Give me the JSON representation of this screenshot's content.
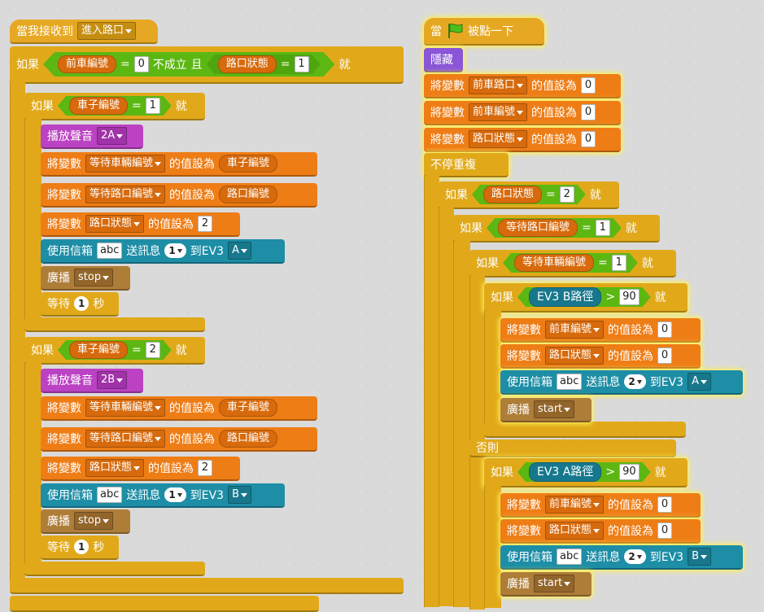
{
  "s1": {
    "hat": {
      "label": "當我接收到",
      "msg": "進入路口"
    },
    "if_outer": {
      "kw": "如果",
      "var1": "前車編號",
      "eq": "=",
      "val1": "0",
      "not": "不成立",
      "and": "且",
      "var2": "路口狀態",
      "val2": "1",
      "then": "就"
    },
    "ifA": {
      "kw": "如果",
      "var": "車子編號",
      "eq": "=",
      "val": "1",
      "then": "就",
      "play": {
        "label": "播放聲音",
        "sound": "2A"
      },
      "set1": {
        "label": "將變數",
        "var": "等待車輛編號",
        "mid": "的值設為",
        "rep": "車子編號"
      },
      "set2": {
        "label": "將變數",
        "var": "等待路口編號",
        "mid": "的值設為",
        "rep": "路口編號"
      },
      "set3": {
        "label": "將變數",
        "var": "路口狀態",
        "mid": "的值設為",
        "val": "2"
      },
      "mail": {
        "label": "使用信箱",
        "abc": "abc",
        "send": "送訊息",
        "num": "1",
        "to": "到EV3",
        "port": "A"
      },
      "bc": {
        "label": "廣播",
        "msg": "stop"
      },
      "wait": {
        "label": "等待",
        "num": "1",
        "unit": "秒"
      }
    },
    "ifB": {
      "kw": "如果",
      "var": "車子編號",
      "eq": "=",
      "val": "2",
      "then": "就",
      "play": {
        "label": "播放聲音",
        "sound": "2B"
      },
      "set1": {
        "label": "將變數",
        "var": "等待車輛編號",
        "mid": "的值設為",
        "rep": "車子編號"
      },
      "set2": {
        "label": "將變數",
        "var": "等待路口編號",
        "mid": "的值設為",
        "rep": "路口編號"
      },
      "set3": {
        "label": "將變數",
        "var": "路口狀態",
        "mid": "的值設為",
        "val": "2"
      },
      "mail": {
        "label": "使用信箱",
        "abc": "abc",
        "send": "送訊息",
        "num": "1",
        "to": "到EV3",
        "port": "B"
      },
      "bc": {
        "label": "廣播",
        "msg": "stop"
      },
      "wait": {
        "label": "等待",
        "num": "1",
        "unit": "秒"
      }
    }
  },
  "s2": {
    "hat": {
      "when": "當",
      "clicked": "被點一下"
    },
    "hide": "隱藏",
    "set1": {
      "label": "將變數",
      "var": "前車路口",
      "mid": "的值設為",
      "val": "0"
    },
    "set2": {
      "label": "將變數",
      "var": "前車編號",
      "mid": "的值設為",
      "val": "0"
    },
    "set3": {
      "label": "將變數",
      "var": "路口狀態",
      "mid": "的值設為",
      "val": "0"
    },
    "forever": "不停重複",
    "if1": {
      "kw": "如果",
      "var": "路口狀態",
      "eq": "=",
      "val": "2",
      "then": "就"
    },
    "if2": {
      "kw": "如果",
      "var": "等待路口編號",
      "eq": "=",
      "val": "1",
      "then": "就"
    },
    "if3": {
      "kw": "如果",
      "var": "等待車輛編號",
      "eq": "=",
      "val": "1",
      "then": "就"
    },
    "if4": {
      "kw": "如果",
      "sensor": "EV3 B路徑",
      "gt": ">",
      "val": "90",
      "then": "就",
      "set1": {
        "label": "將變數",
        "var": "前車編號",
        "mid": "的值設為",
        "val": "0"
      },
      "set2": {
        "label": "將變數",
        "var": "路口狀態",
        "mid": "的值設為",
        "val": "0"
      },
      "mail": {
        "label": "使用信箱",
        "abc": "abc",
        "send": "送訊息",
        "num": "2",
        "to": "到EV3",
        "port": "A"
      },
      "bc": {
        "label": "廣播",
        "msg": "start"
      }
    },
    "else": "否則",
    "if5": {
      "kw": "如果",
      "sensor": "EV3 A路徑",
      "gt": ">",
      "val": "90",
      "then": "就",
      "set1": {
        "label": "將變數",
        "var": "前車編號",
        "mid": "的值設為",
        "val": "0"
      },
      "set2": {
        "label": "將變數",
        "var": "路口狀態",
        "mid": "的值設為",
        "val": "0"
      },
      "mail": {
        "label": "使用信箱",
        "abc": "abc",
        "send": "送訊息",
        "num": "2",
        "to": "到EV3",
        "port": "B"
      },
      "bc": {
        "label": "廣播",
        "msg": "start"
      }
    }
  },
  "icons": {
    "flag": "green-flag-icon",
    "dropdown": "dropdown-arrow-icon"
  },
  "colors": {
    "events": "#e6a822",
    "control": "#e1a91a",
    "data": "#ee7d16",
    "operators": "#5cb712",
    "looks": "#8a55d7",
    "sound": "#bb42c3",
    "extension": "#1d8ea6",
    "broadcast": "#ae7d38"
  }
}
